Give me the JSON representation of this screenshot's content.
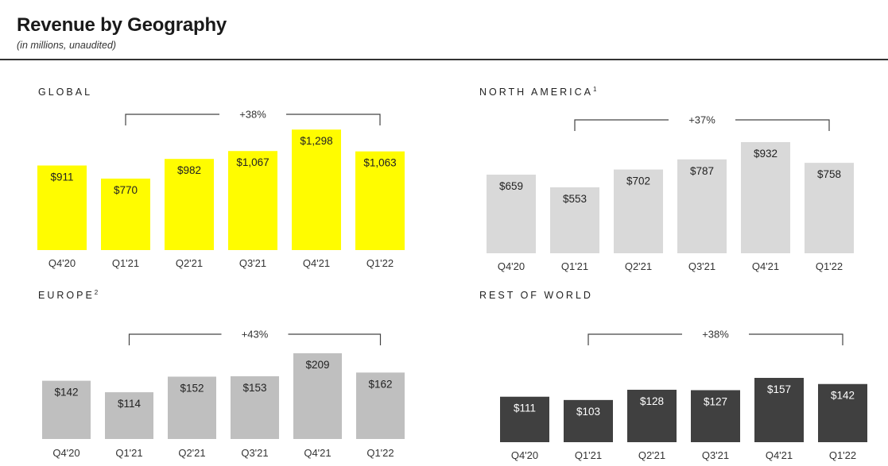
{
  "header": {
    "title": "Revenue by Geography",
    "subtitle": "(in millions, unaudited)"
  },
  "chart_data": [
    {
      "type": "bar",
      "title": "GLOBAL",
      "title_sup": "",
      "categories": [
        "Q4'20",
        "Q1'21",
        "Q2'21",
        "Q3'21",
        "Q4'21",
        "Q1'22"
      ],
      "values": [
        911,
        770,
        982,
        1067,
        1298,
        1063
      ],
      "labels": [
        "$911",
        "$770",
        "$982",
        "$1,067",
        "$1,298",
        "$1,063"
      ],
      "growth_label": "+38%",
      "growth_from": "Q1'21",
      "growth_to": "Q1'22",
      "bar_color": "#FFFC00",
      "label_color": "#222222",
      "ylim": [
        0,
        1300
      ]
    },
    {
      "type": "bar",
      "title": "NORTH AMERICA",
      "title_sup": "1",
      "categories": [
        "Q4'20",
        "Q1'21",
        "Q2'21",
        "Q3'21",
        "Q4'21",
        "Q1'22"
      ],
      "values": [
        659,
        553,
        702,
        787,
        932,
        758
      ],
      "labels": [
        "$659",
        "$553",
        "$702",
        "$787",
        "$932",
        "$758"
      ],
      "growth_label": "+37%",
      "growth_from": "Q1'21",
      "growth_to": "Q1'22",
      "bar_color": "#D9D9D9",
      "label_color": "#222222",
      "ylim": [
        0,
        932
      ]
    },
    {
      "type": "bar",
      "title": "EUROPE",
      "title_sup": "2",
      "categories": [
        "Q4'20",
        "Q1'21",
        "Q2'21",
        "Q3'21",
        "Q4'21",
        "Q1'22"
      ],
      "values": [
        142,
        114,
        152,
        153,
        209,
        162
      ],
      "labels": [
        "$142",
        "$114",
        "$152",
        "$153",
        "$209",
        "$162"
      ],
      "growth_label": "+43%",
      "growth_from": "Q1'21",
      "growth_to": "Q1'22",
      "bar_color": "#BFBFBF",
      "label_color": "#222222",
      "ylim": [
        0,
        209
      ]
    },
    {
      "type": "bar",
      "title": "REST OF WORLD",
      "title_sup": "",
      "categories": [
        "Q4'20",
        "Q1'21",
        "Q2'21",
        "Q3'21",
        "Q4'21",
        "Q1'22"
      ],
      "values": [
        111,
        103,
        128,
        127,
        157,
        142
      ],
      "labels": [
        "$111",
        "$103",
        "$128",
        "$127",
        "$157",
        "$142"
      ],
      "growth_label": "+38%",
      "growth_from": "Q1'21",
      "growth_to": "Q1'22",
      "bar_color": "#404040",
      "label_color": "#FFFFFF",
      "ylim": [
        0,
        157
      ]
    }
  ]
}
